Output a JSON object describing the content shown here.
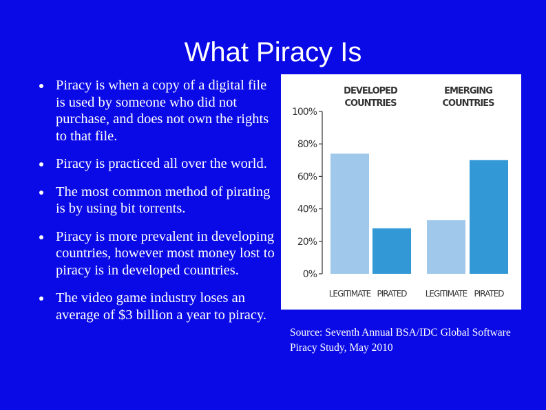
{
  "slide": {
    "title": "What Piracy Is",
    "bullets": [
      "Piracy is when a copy of a digital file is used by someone who did not purchase, and does not own the rights to that file.",
      "Piracy is practiced all over the world.",
      "The most common method of pirating is by using bit torrents.",
      "Piracy is more prevalent in developing countries, however most money lost to piracy is in developed countries.",
      "The video game industry loses an average of $3 billion a year to piracy."
    ],
    "source": "Source: Seventh Annual BSA/IDC Global Software Piracy Study, May 2010"
  },
  "chart_data": {
    "type": "bar",
    "groups": [
      {
        "label_lines": [
          "DEVELOPED",
          "COUNTRIES"
        ]
      },
      {
        "label_lines": [
          "EMERGING",
          "COUNTRIES"
        ]
      }
    ],
    "categories": [
      "LEGITIMATE",
      "PIRATED",
      "LEGITIMATE",
      "PIRATED"
    ],
    "values": [
      74,
      28,
      33,
      70
    ],
    "bar_colors": [
      "#9fc8ea",
      "#3399d6",
      "#9fc8ea",
      "#3399d6"
    ],
    "yticks": [
      "0%",
      "20%",
      "40%",
      "60%",
      "80%",
      "100%"
    ],
    "ylim": [
      0,
      100
    ],
    "grid": false
  }
}
